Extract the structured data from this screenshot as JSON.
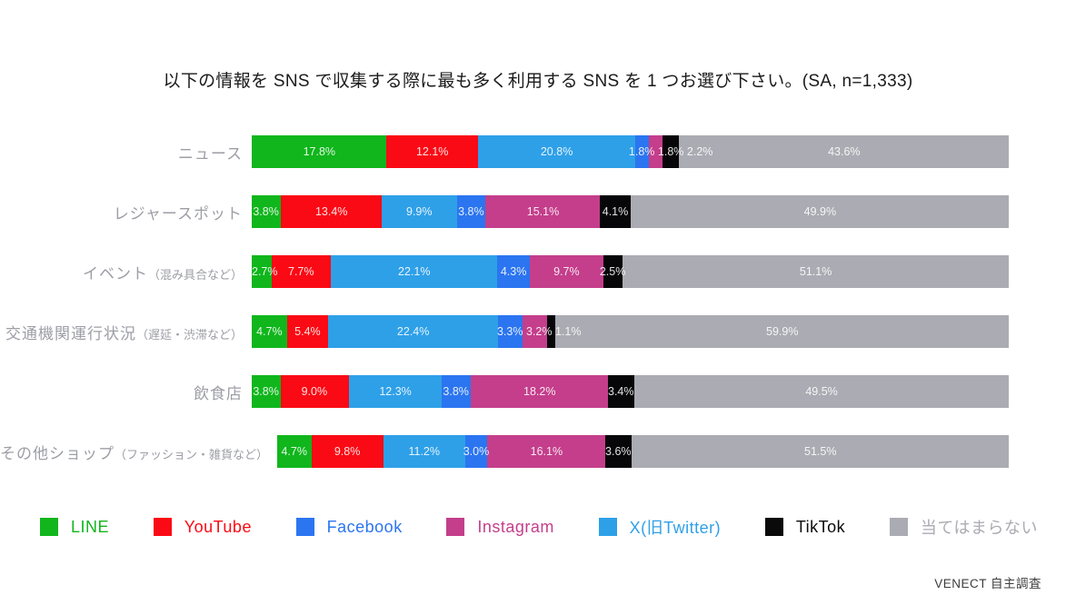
{
  "title": "以下の情報を SNS で収集する際に最も多く利用する SNS を 1 つお選び下さい。(SA, n=1,333)",
  "footer": "VENECT 自主調査",
  "chart_data": {
    "type": "bar",
    "stacked": true,
    "orientation": "horizontal",
    "unit": "%",
    "xlim": [
      0,
      100
    ],
    "value_format": "one-decimal-percent",
    "title": "以下の情報を SNS で収集する際に最も多く利用する SNS を 1 つお選び下さい。(SA, n=1,333)",
    "categories": [
      {
        "label": "ニュース",
        "sublabel": ""
      },
      {
        "label": "レジャースポット",
        "sublabel": ""
      },
      {
        "label": "イベント",
        "sublabel": "（混み具合など）"
      },
      {
        "label": "交通機関運行状況",
        "sublabel": "（遅延・渋滞など）"
      },
      {
        "label": "飲食店",
        "sublabel": ""
      },
      {
        "label": "その他ショップ",
        "sublabel": "（ファッション・雑貨など）"
      }
    ],
    "series": [
      {
        "name": "LINE",
        "color": "#10b61c",
        "values": [
          17.8,
          3.8,
          2.7,
          4.7,
          3.8,
          4.7
        ]
      },
      {
        "name": "YouTube",
        "color": "#fa0a14",
        "values": [
          12.1,
          13.4,
          7.7,
          5.4,
          9.0,
          9.8
        ]
      },
      {
        "name": "X(旧Twitter)",
        "color": "#2ea0e8",
        "values": [
          20.8,
          9.9,
          22.1,
          22.4,
          12.3,
          11.2
        ]
      },
      {
        "name": "Facebook",
        "color": "#2b75f0",
        "values": [
          1.8,
          3.8,
          4.3,
          3.3,
          3.8,
          3.0
        ]
      },
      {
        "name": "Instagram",
        "color": "#c43e8b",
        "values": [
          1.8,
          15.1,
          9.7,
          3.2,
          18.2,
          16.1
        ]
      },
      {
        "name": "TikTok",
        "color": "#070709",
        "values": [
          2.2,
          4.1,
          2.5,
          1.1,
          3.4,
          3.6
        ]
      },
      {
        "name": "当てはまらない",
        "color": "#ababb3",
        "values": [
          43.6,
          49.9,
          51.1,
          59.9,
          49.5,
          51.5
        ]
      }
    ],
    "legend": [
      {
        "label": "LINE",
        "color": "#10b61c"
      },
      {
        "label": "YouTube",
        "color": "#fa0a14"
      },
      {
        "label": "Facebook",
        "color": "#2b75f0"
      },
      {
        "label": "Instagram",
        "color": "#c43e8b"
      },
      {
        "label": "X(旧Twitter)",
        "color": "#2ea0e8"
      },
      {
        "label": "TikTok",
        "color": "#0a0a0a"
      },
      {
        "label": "当てはまらない",
        "color": "#ababb3"
      }
    ],
    "legend_position": "bottom",
    "grid": false
  }
}
